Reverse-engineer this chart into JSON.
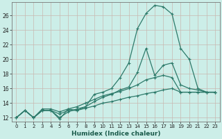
{
  "title": "",
  "xlabel": "Humidex (Indice chaleur)",
  "background_color": "#cceee8",
  "grid_color": "#b0d8d0",
  "line_color": "#2d7a6a",
  "xlim": [
    -0.5,
    23.5
  ],
  "ylim": [
    11.5,
    27.8
  ],
  "xticks": [
    0,
    1,
    2,
    3,
    4,
    5,
    6,
    7,
    8,
    9,
    10,
    11,
    12,
    13,
    14,
    15,
    16,
    17,
    18,
    19,
    20,
    21,
    22,
    23
  ],
  "yticks": [
    12,
    14,
    16,
    18,
    20,
    22,
    24,
    26
  ],
  "series": [
    [
      12.0,
      13.0,
      12.0,
      13.0,
      13.0,
      12.0,
      12.8,
      13.2,
      13.5,
      15.2,
      15.5,
      16.0,
      17.5,
      19.5,
      24.2,
      26.3,
      27.4,
      27.2,
      26.2,
      21.5,
      20.0,
      16.0,
      15.5,
      15.5
    ],
    [
      12.0,
      13.0,
      12.0,
      13.0,
      13.0,
      11.8,
      13.2,
      13.0,
      13.5,
      14.2,
      14.8,
      15.2,
      15.8,
      16.2,
      18.2,
      21.5,
      17.8,
      19.2,
      19.5,
      16.5,
      16.0,
      15.8,
      15.5,
      15.5
    ],
    [
      12.0,
      13.0,
      12.0,
      13.2,
      13.2,
      12.8,
      13.2,
      13.5,
      14.0,
      14.5,
      15.0,
      15.3,
      15.6,
      16.0,
      16.5,
      17.2,
      17.5,
      17.8,
      17.5,
      15.5,
      15.5,
      15.5,
      15.5,
      15.5
    ],
    [
      12.0,
      13.0,
      12.0,
      13.0,
      13.0,
      12.5,
      13.0,
      13.0,
      13.3,
      13.6,
      14.0,
      14.2,
      14.5,
      14.8,
      15.0,
      15.3,
      15.5,
      15.8,
      16.0,
      15.5,
      15.5,
      15.5,
      15.5,
      15.5
    ]
  ]
}
